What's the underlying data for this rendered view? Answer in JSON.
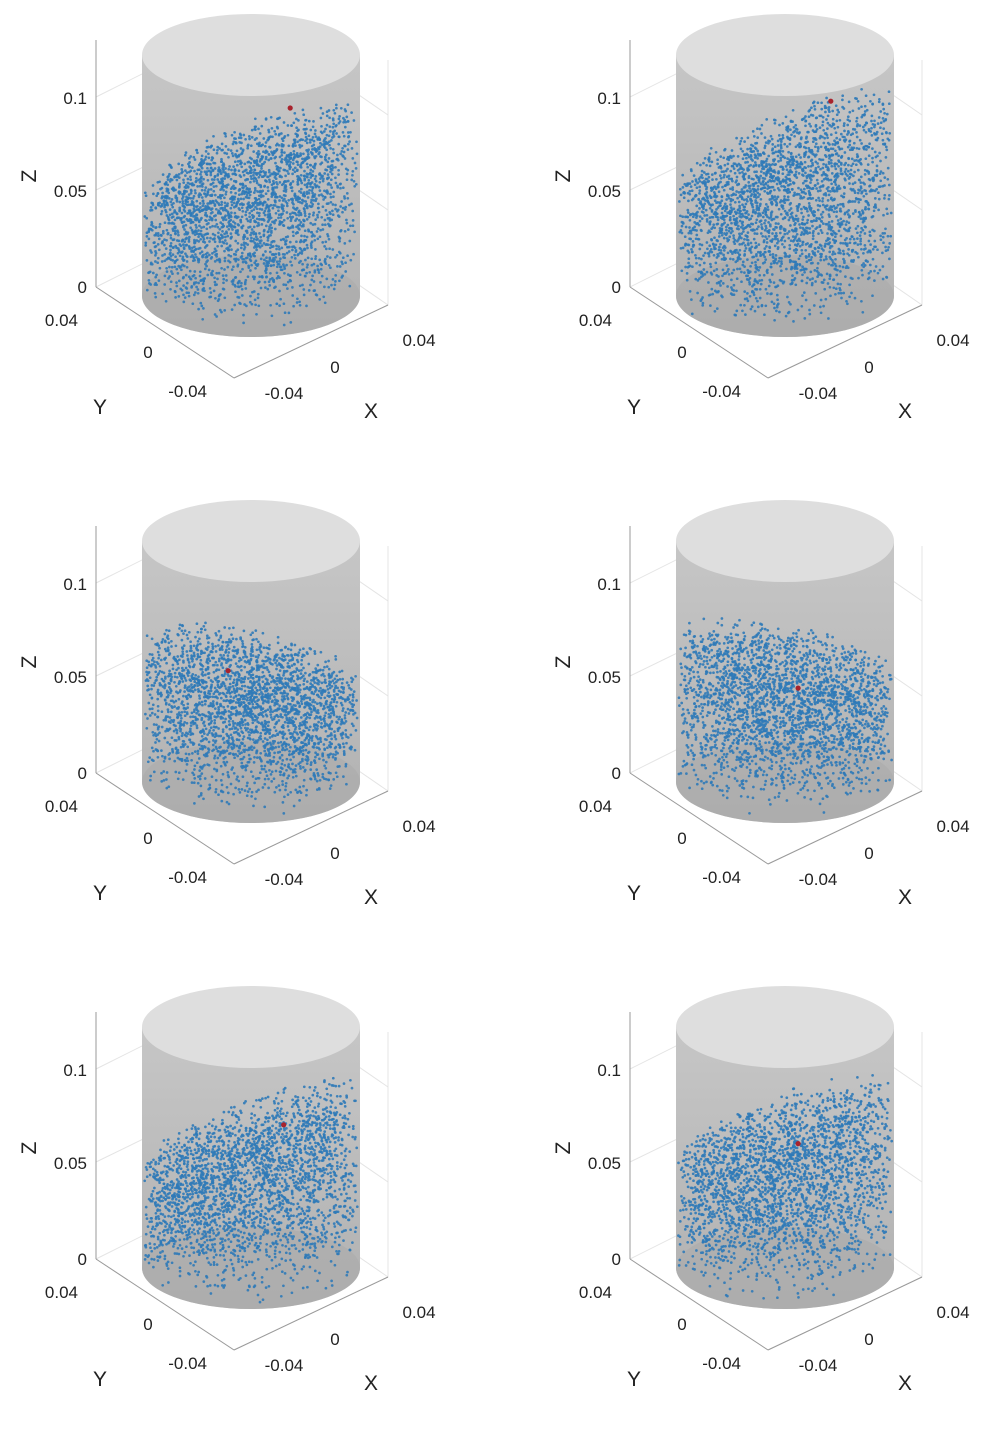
{
  "figure": {
    "panel_count": 6,
    "layout": "3 rows x 2 columns"
  },
  "chart_data": [
    {
      "type": "scatter",
      "title": "",
      "xlabel": "X",
      "ylabel": "Y",
      "zlabel": "Z",
      "z_ticks": [
        "0",
        "0.05",
        "0.1"
      ],
      "x_ticks": [
        "-0.04",
        "0",
        "0.04"
      ],
      "y_ticks": [
        "0.04",
        "0",
        "-0.04"
      ],
      "xlim": [
        -0.05,
        0.05
      ],
      "ylim": [
        -0.05,
        0.05
      ],
      "zlim": [
        0,
        0.12
      ],
      "cylinder": {
        "radius": 0.05,
        "height": 0.12,
        "color": "#bdbdbd"
      },
      "series": [
        {
          "marker_color": "#2f7ab8",
          "approx_points": 3500,
          "surface_tilt_z": [
            0.055,
            0.1
          ],
          "surface_azimuth_deg": 45
        },
        {
          "marker_color": "#a8232d",
          "point": [
            0.03,
            0.03,
            0.101
          ]
        }
      ]
    },
    {
      "type": "scatter",
      "title": "",
      "xlabel": "X",
      "ylabel": "Y",
      "zlabel": "Z",
      "z_ticks": [
        "0",
        "0.05",
        "0.1"
      ],
      "x_ticks": [
        "-0.04",
        "0",
        "0.04"
      ],
      "y_ticks": [
        "0.04",
        "0",
        "-0.04"
      ],
      "xlim": [
        -0.05,
        0.05
      ],
      "ylim": [
        -0.05,
        0.05
      ],
      "zlim": [
        0,
        0.12
      ],
      "cylinder": {
        "radius": 0.05,
        "height": 0.12,
        "color": "#bdbdbd"
      },
      "series": [
        {
          "marker_color": "#2f7ab8",
          "approx_points": 3500,
          "surface_tilt_z": [
            0.06,
            0.105
          ],
          "surface_azimuth_deg": 45
        },
        {
          "marker_color": "#a8232d",
          "point": [
            0.035,
            0.035,
            0.105
          ]
        }
      ]
    },
    {
      "type": "scatter",
      "title": "",
      "xlabel": "X",
      "ylabel": "Y",
      "zlabel": "Z",
      "z_ticks": [
        "0",
        "0.05",
        "0.1"
      ],
      "x_ticks": [
        "-0.04",
        "0",
        "0.04"
      ],
      "y_ticks": [
        "0.04",
        "0",
        "-0.04"
      ],
      "xlim": [
        -0.05,
        0.05
      ],
      "ylim": [
        -0.05,
        0.05
      ],
      "zlim": [
        0,
        0.12
      ],
      "cylinder": {
        "radius": 0.05,
        "height": 0.12,
        "color": "#bdbdbd"
      },
      "series": [
        {
          "marker_color": "#2f7ab8",
          "approx_points": 3500,
          "surface_tilt_z": [
            0.075,
            0.055
          ],
          "surface_azimuth_deg": 45
        },
        {
          "marker_color": "#a8232d",
          "point": [
            -0.01,
            0.02,
            0.06
          ]
        }
      ]
    },
    {
      "type": "scatter",
      "title": "",
      "xlabel": "X",
      "ylabel": "Y",
      "zlabel": "Z",
      "z_ticks": [
        "0",
        "0.05",
        "0.1"
      ],
      "x_ticks": [
        "-0.04",
        "0",
        "0.04"
      ],
      "y_ticks": [
        "0.04",
        "0",
        "-0.04"
      ],
      "xlim": [
        -0.05,
        0.05
      ],
      "ylim": [
        -0.05,
        0.05
      ],
      "zlim": [
        0,
        0.12
      ],
      "cylinder": {
        "radius": 0.05,
        "height": 0.12,
        "color": "#bdbdbd"
      },
      "series": [
        {
          "marker_color": "#2f7ab8",
          "approx_points": 3500,
          "surface_tilt_z": [
            0.078,
            0.058
          ],
          "surface_azimuth_deg": 45
        },
        {
          "marker_color": "#a8232d",
          "point": [
            0.01,
            0.01,
            0.05
          ]
        }
      ]
    },
    {
      "type": "scatter",
      "title": "",
      "xlabel": "X",
      "ylabel": "Y",
      "zlabel": "Z",
      "z_ticks": [
        "0",
        "0.05",
        "0.1"
      ],
      "x_ticks": [
        "-0.04",
        "0",
        "0.04"
      ],
      "y_ticks": [
        "0.04",
        "0",
        "-0.04"
      ],
      "xlim": [
        -0.05,
        0.05
      ],
      "ylim": [
        -0.05,
        0.05
      ],
      "zlim": [
        0,
        0.12
      ],
      "cylinder": {
        "radius": 0.05,
        "height": 0.12,
        "color": "#bdbdbd"
      },
      "series": [
        {
          "marker_color": "#2f7ab8",
          "approx_points": 3500,
          "surface_tilt_z": [
            0.055,
            0.095
          ],
          "surface_azimuth_deg": 45
        },
        {
          "marker_color": "#a8232d",
          "point": [
            0.02,
            0.0,
            0.075
          ]
        }
      ]
    },
    {
      "type": "scatter",
      "title": "",
      "xlabel": "X",
      "ylabel": "Y",
      "zlabel": "Z",
      "z_ticks": [
        "0",
        "0.05",
        "0.1"
      ],
      "x_ticks": [
        "-0.04",
        "0",
        "0.04"
      ],
      "y_ticks": [
        "0.04",
        "0",
        "-0.04"
      ],
      "xlim": [
        -0.05,
        0.05
      ],
      "ylim": [
        -0.05,
        0.05
      ],
      "zlim": [
        0,
        0.12
      ],
      "cylinder": {
        "radius": 0.05,
        "height": 0.12,
        "color": "#bdbdbd"
      },
      "series": [
        {
          "marker_color": "#2f7ab8",
          "approx_points": 3500,
          "surface_tilt_z": [
            0.06,
            0.095
          ],
          "surface_azimuth_deg": 45
        },
        {
          "marker_color": "#a8232d",
          "point": [
            0.01,
            0.01,
            0.066
          ]
        }
      ]
    }
  ]
}
